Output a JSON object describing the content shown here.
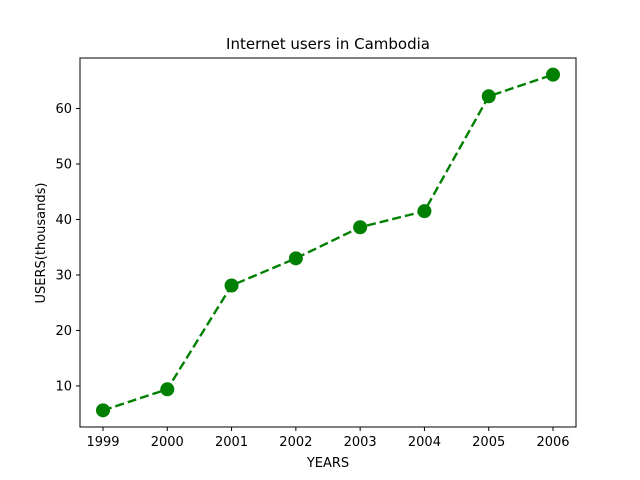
{
  "chart_data": {
    "type": "line",
    "title": "Internet users in Cambodia",
    "xlabel": "YEARS",
    "ylabel": "USERS(thousands)",
    "x": [
      "1999",
      "2000",
      "2001",
      "2002",
      "2003",
      "2004",
      "2005",
      "2006"
    ],
    "series": [
      {
        "values": [
          5.6,
          9.4,
          28.1,
          33.0,
          38.6,
          41.5,
          62.2,
          66.1
        ],
        "color": "#008000",
        "line_style": "dashed",
        "marker": "circle"
      }
    ],
    "yticks": [
      10,
      20,
      30,
      40,
      50,
      60
    ],
    "ylim": [
      2.6,
      69.1
    ],
    "grid": false,
    "legend": "none"
  }
}
